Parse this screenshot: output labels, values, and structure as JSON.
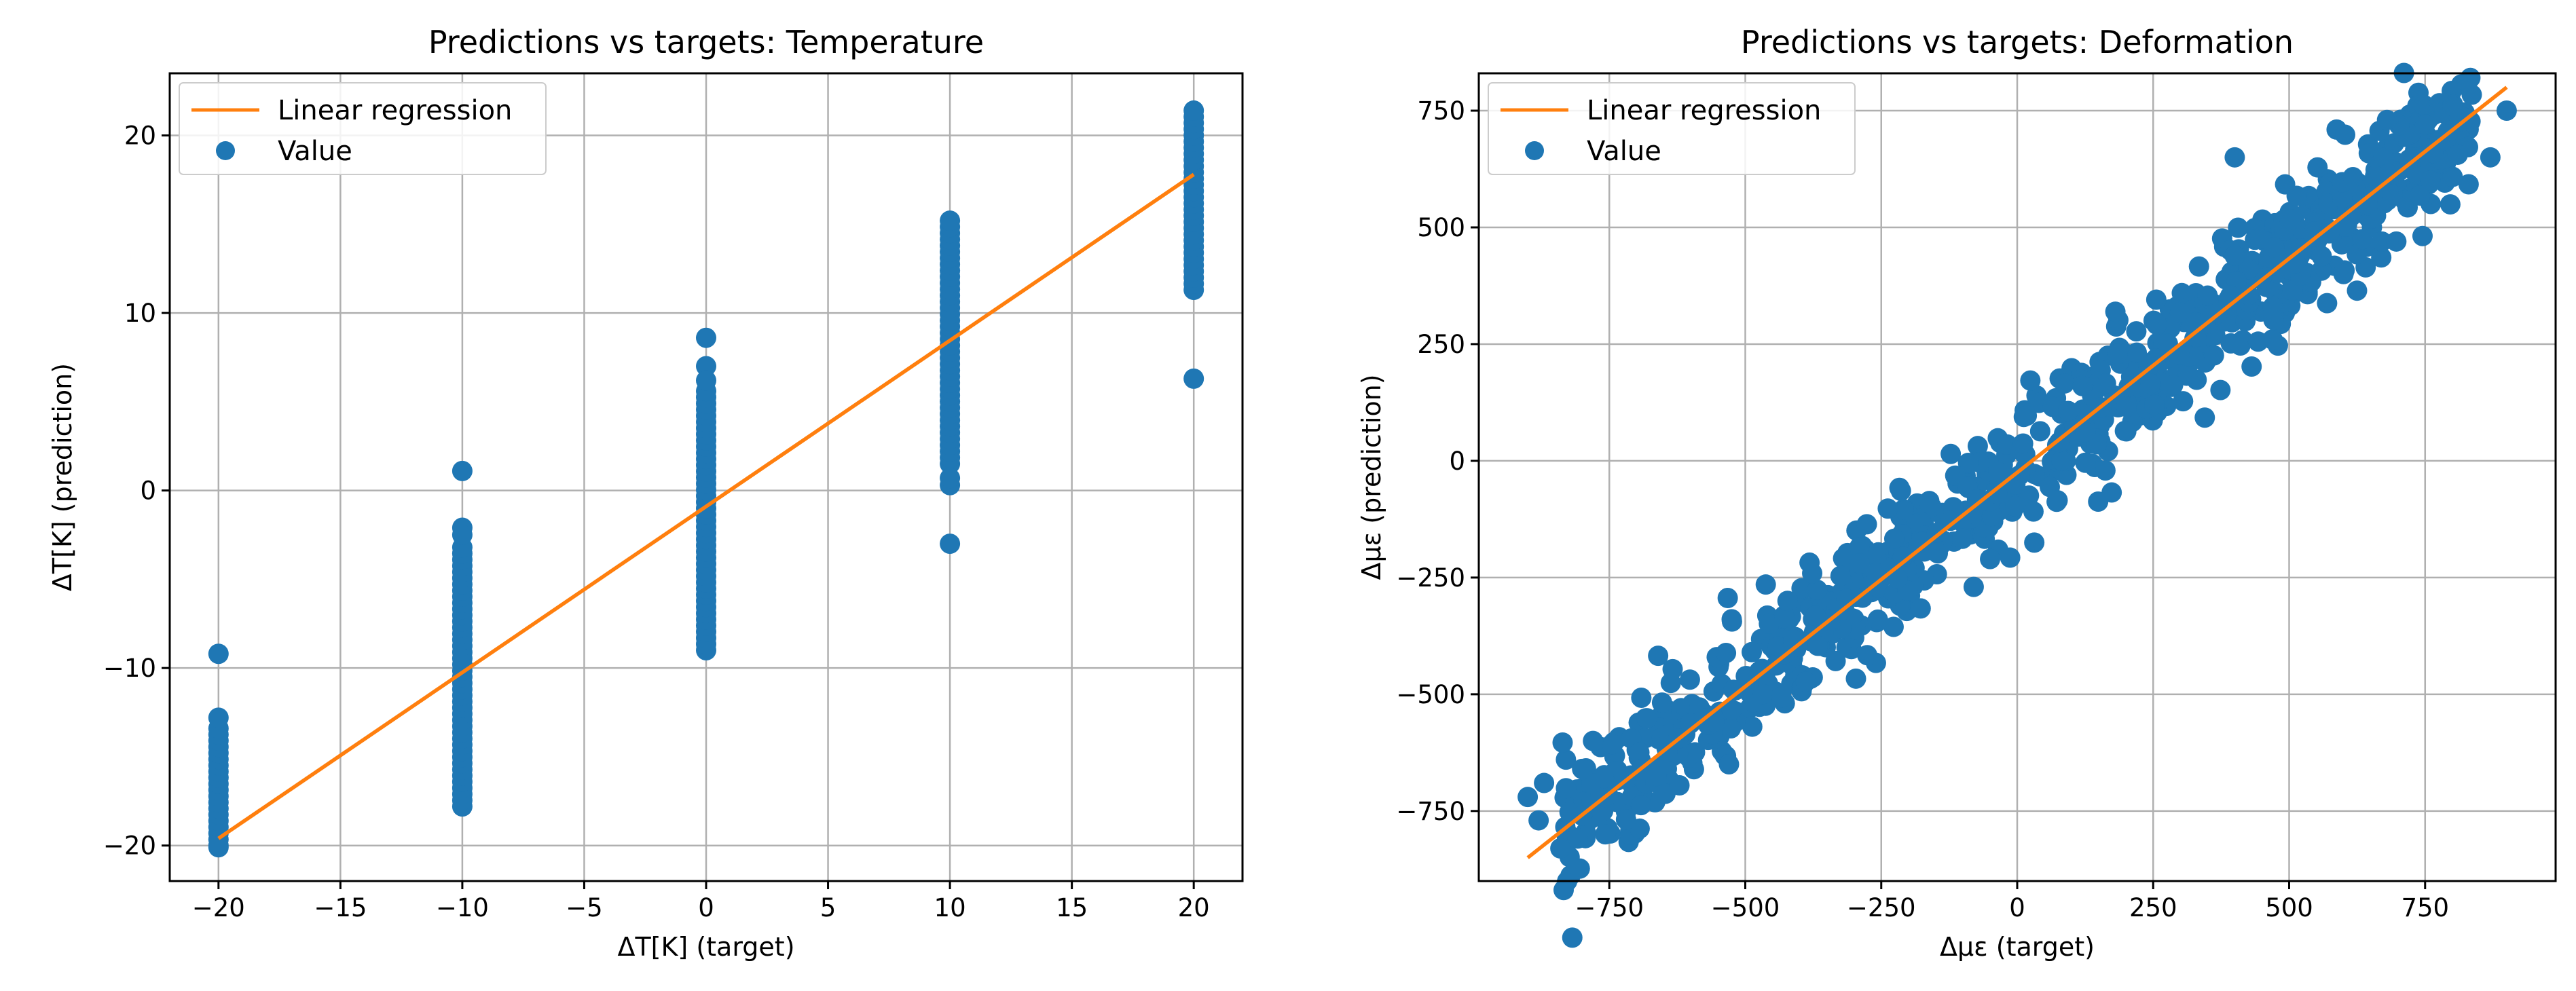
{
  "colors": {
    "scatter": "#1f77b4",
    "line": "#ff7f0e",
    "grid": "#b0b0b0",
    "axes": "#000000"
  },
  "chart_data": [
    {
      "type": "scatter",
      "title": "Predictions vs targets: Temperature",
      "xlabel": "ΔT[K] (target)",
      "ylabel": "ΔT[K] (prediction)",
      "xlim": [
        -22,
        22
      ],
      "ylim": [
        -22,
        23.5
      ],
      "xticks": [
        -20,
        -15,
        -10,
        -5,
        0,
        5,
        10,
        15,
        20
      ],
      "yticks": [
        -20,
        -10,
        0,
        10,
        20
      ],
      "legend": [
        "Linear regression",
        "Value"
      ],
      "legend_position": "top-left",
      "grid": true,
      "regression": {
        "x": [
          -20,
          20
        ],
        "y": [
          -19.6,
          17.8
        ]
      },
      "series": [
        {
          "x": -20,
          "y_range": [
            -20,
            -13.4
          ],
          "outliers": [
            -9.2,
            -12.8,
            -20.1
          ]
        },
        {
          "x": -10,
          "y_range": [
            -17.8,
            -3.2
          ],
          "outliers": [
            1.1,
            -2.1,
            -2.5
          ]
        },
        {
          "x": 0,
          "y_range": [
            -9.0,
            5.6
          ],
          "outliers": [
            8.6,
            7.0,
            6.2
          ]
        },
        {
          "x": 10,
          "y_range": [
            1.5,
            15.2
          ],
          "outliers": [
            -3.0,
            0.3,
            0.7
          ]
        },
        {
          "x": 20,
          "y_range": [
            11.3,
            21.4
          ],
          "outliers": [
            6.3
          ]
        }
      ]
    },
    {
      "type": "scatter",
      "title": "Predictions vs targets: Deformation",
      "xlabel": "Δμε (target)",
      "ylabel": "Δμε (prediction)",
      "xlim": [
        -990,
        990
      ],
      "ylim": [
        -900,
        830
      ],
      "xticks": [
        -750,
        -500,
        -250,
        0,
        250,
        500,
        750
      ],
      "yticks": [
        -750,
        -500,
        -250,
        0,
        250,
        500,
        750
      ],
      "legend": [
        "Linear regression",
        "Value"
      ],
      "legend_position": "top-left",
      "grid": true,
      "regression": {
        "x": [
          -900,
          900
        ],
        "y": [
          -850,
          800
        ]
      },
      "cloud": {
        "x_range": [
          -900,
          900
        ],
        "slope": 0.92,
        "intercept": -25,
        "spread": 70
      },
      "points": [
        [
          -900,
          -720
        ],
        [
          -870,
          -690
        ],
        [
          -880,
          -770
        ],
        [
          -840,
          -830
        ],
        [
          -800,
          -660
        ],
        [
          -780,
          -600
        ],
        [
          -800,
          -760
        ],
        [
          -760,
          -680
        ],
        [
          800,
          760
        ],
        [
          900,
          750
        ],
        [
          870,
          650
        ],
        [
          760,
          600
        ],
        [
          750,
          720
        ],
        [
          680,
          730
        ],
        [
          600,
          400
        ],
        [
          690,
          570
        ],
        [
          -530,
          -650
        ],
        [
          120,
          160
        ],
        [
          -80,
          -270
        ],
        [
          400,
          650
        ]
      ]
    }
  ]
}
